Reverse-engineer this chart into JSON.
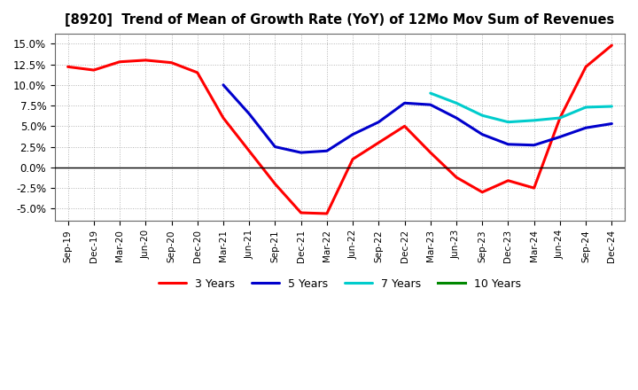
{
  "title": "[8920]  Trend of Mean of Growth Rate (YoY) of 12Mo Mov Sum of Revenues",
  "ylim": [
    -0.065,
    0.162
  ],
  "yticks": [
    -0.05,
    -0.025,
    0.0,
    0.025,
    0.05,
    0.075,
    0.1,
    0.125,
    0.15
  ],
  "background_color": "#ffffff",
  "plot_bg_color": "#ffffff",
  "grid_color": "#aaaaaa",
  "x_labels": [
    "Sep-19",
    "Dec-19",
    "Mar-20",
    "Jun-20",
    "Sep-20",
    "Dec-20",
    "Mar-21",
    "Jun-21",
    "Sep-21",
    "Dec-21",
    "Mar-22",
    "Jun-22",
    "Sep-22",
    "Dec-22",
    "Mar-23",
    "Jun-23",
    "Sep-23",
    "Dec-23",
    "Mar-24",
    "Jun-24",
    "Sep-24",
    "Dec-24"
  ],
  "series": {
    "3 Years": {
      "color": "#ff0000",
      "linewidth": 2.2,
      "data_x": [
        0,
        1,
        2,
        3,
        4,
        5,
        6,
        7,
        8,
        9,
        10,
        11,
        12,
        13,
        14,
        15,
        16,
        17,
        18,
        19,
        20,
        21
      ],
      "data_y": [
        0.122,
        0.118,
        0.128,
        0.13,
        0.127,
        0.115,
        0.06,
        0.02,
        -0.02,
        -0.055,
        -0.056,
        0.01,
        0.03,
        0.05,
        0.018,
        -0.012,
        -0.03,
        -0.016,
        -0.025,
        0.06,
        0.122,
        0.148
      ]
    },
    "5 Years": {
      "color": "#0000cc",
      "linewidth": 2.2,
      "data_x": [
        6,
        7,
        8,
        9,
        10,
        11,
        12,
        13,
        14,
        15,
        16,
        17,
        18,
        19,
        20,
        21
      ],
      "data_y": [
        0.1,
        0.065,
        0.025,
        0.018,
        0.02,
        0.04,
        0.055,
        0.078,
        0.076,
        0.06,
        0.04,
        0.028,
        0.027,
        0.037,
        0.048,
        0.053
      ]
    },
    "7 Years": {
      "color": "#00cccc",
      "linewidth": 2.2,
      "data_x": [
        14,
        15,
        16,
        17,
        18,
        19,
        20,
        21
      ],
      "data_y": [
        0.09,
        0.078,
        0.063,
        0.055,
        0.057,
        0.06,
        0.073,
        0.074
      ]
    },
    "10 Years": {
      "color": "#008800",
      "linewidth": 2.2,
      "data_x": [],
      "data_y": []
    }
  }
}
